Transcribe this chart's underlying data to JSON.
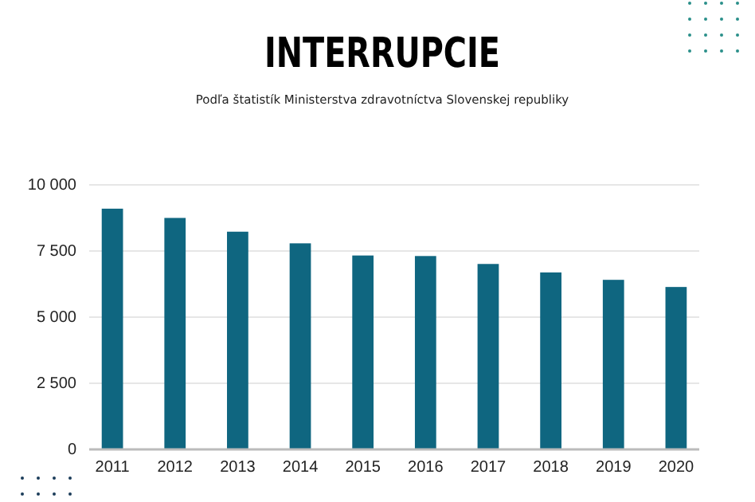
{
  "chart_data": {
    "type": "bar",
    "title": "INTERRUPCIE",
    "subtitle": "Podľa štatistík Ministerstva zdravotníctva Slovenskej republiky",
    "categories": [
      "2011",
      "2012",
      "2013",
      "2014",
      "2015",
      "2016",
      "2017",
      "2018",
      "2019",
      "2020"
    ],
    "values": [
      9100,
      8750,
      8230,
      7790,
      7330,
      7310,
      7010,
      6690,
      6410,
      6140
    ],
    "color": "#0f6680",
    "ylim": [
      0,
      10000
    ],
    "yticks": [
      {
        "value": 0,
        "label": "0"
      },
      {
        "value": 2500,
        "label": "2 500"
      },
      {
        "value": 5000,
        "label": "5 000"
      },
      {
        "value": 7500,
        "label": "7 500"
      },
      {
        "value": 10000,
        "label": "10 000"
      }
    ],
    "grid": "y"
  }
}
